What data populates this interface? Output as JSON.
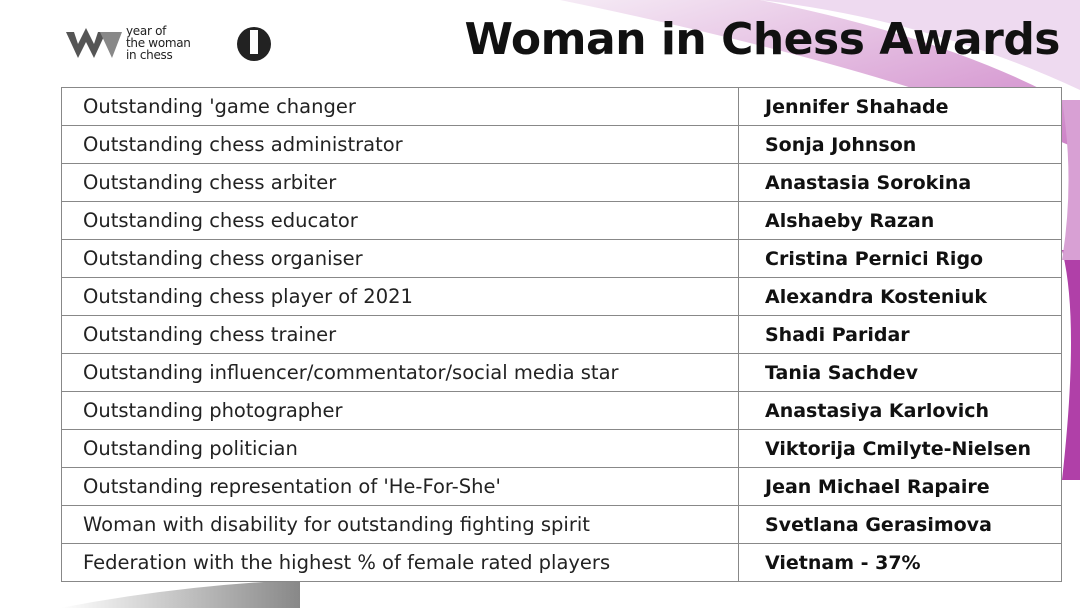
{
  "header": {
    "logo_text": [
      "year of",
      "the woman",
      "in chess"
    ],
    "title": "Woman in Chess Awards"
  },
  "table": {
    "rows": [
      [
        "Outstanding 'game changer",
        "Jennifer Shahade"
      ],
      [
        "Outstanding chess administrator",
        "Sonja Johnson"
      ],
      [
        "Outstanding chess arbiter",
        "Anastasia Sorokina"
      ],
      [
        "Outstanding chess educator",
        "Alshaeby Razan"
      ],
      [
        "Outstanding chess organiser",
        "Cristina Pernici Rigo"
      ],
      [
        "Outstanding chess player of 2021",
        "Alexandra Kosteniuk"
      ],
      [
        "Outstanding chess trainer",
        "Shadi Paridar"
      ],
      [
        "Outstanding influencer/commentator/social media star",
        "Tania Sachdev"
      ],
      [
        "Outstanding photographer",
        "Anastasiya Karlovich"
      ],
      [
        "Outstanding politician",
        "Viktorija Cmilyte-Nielsen"
      ],
      [
        "Outstanding representation of 'He-For-She'",
        "Jean Michael Rapaire"
      ],
      [
        "Woman with disability for outstanding fighting spirit",
        "Svetlana Gerasimova"
      ],
      [
        "Federation with the highest % of female rated players",
        "Vietnam - 37%"
      ]
    ]
  }
}
